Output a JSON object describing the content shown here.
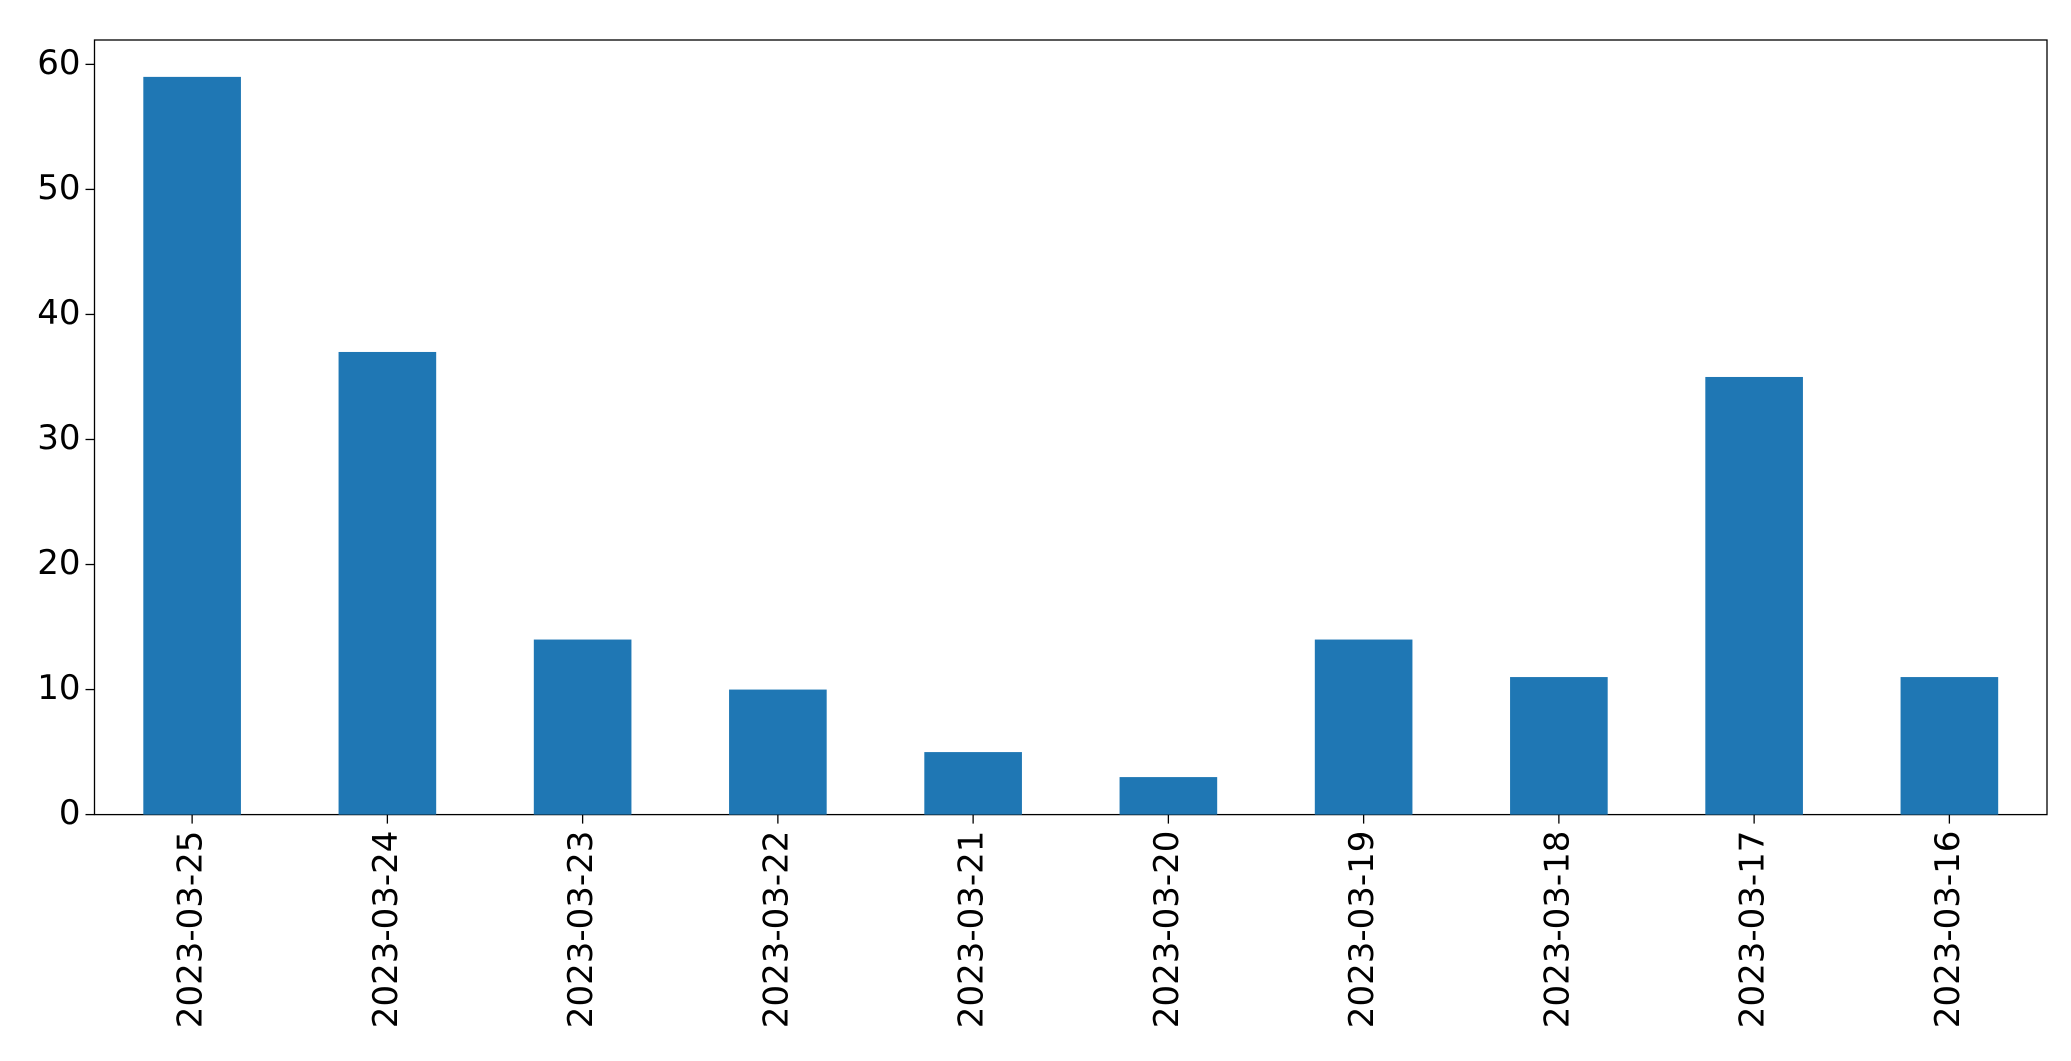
{
  "chart_data": {
    "type": "bar",
    "categories": [
      "2023-03-25",
      "2023-03-24",
      "2023-03-23",
      "2023-03-22",
      "2023-03-21",
      "2023-03-20",
      "2023-03-19",
      "2023-03-18",
      "2023-03-17",
      "2023-03-16"
    ],
    "values": [
      59,
      37,
      14,
      10,
      5,
      3,
      14,
      11,
      35,
      11
    ],
    "color": "#1f77b4",
    "ylim": [
      0,
      61.95
    ],
    "yticks": [
      0,
      10,
      20,
      30,
      40,
      50,
      60
    ],
    "grid": false
  }
}
